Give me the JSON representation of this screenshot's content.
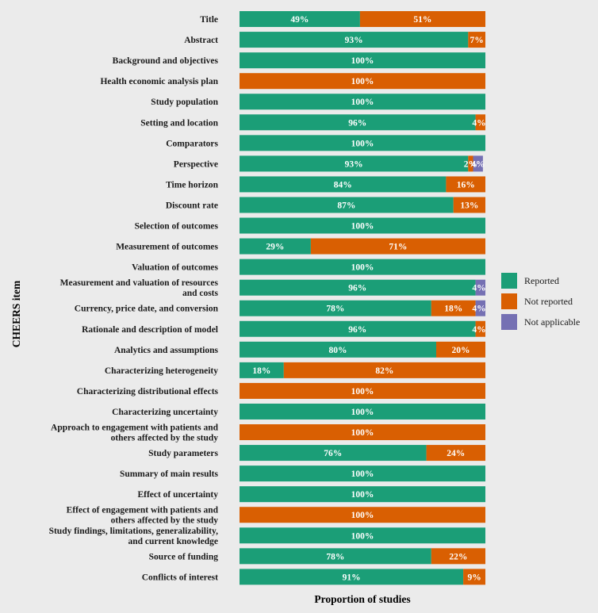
{
  "chart_data": {
    "type": "bar",
    "orientation": "horizontal",
    "stacked": true,
    "xlabel": "Proportion of studies",
    "ylabel": "CHEERS item",
    "xlim": [
      0,
      100
    ],
    "legend_position": "right",
    "categories": [
      [
        "Title"
      ],
      [
        "Abstract"
      ],
      [
        "Background and objectives"
      ],
      [
        "Health economic analysis plan"
      ],
      [
        "Study population"
      ],
      [
        "Setting and location"
      ],
      [
        "Comparators"
      ],
      [
        "Perspective"
      ],
      [
        "Time horizon"
      ],
      [
        "Discount rate"
      ],
      [
        "Selection of outcomes"
      ],
      [
        "Measurement of outcomes"
      ],
      [
        "Valuation of outcomes"
      ],
      [
        "Measurement and valuation of resources",
        "and costs"
      ],
      [
        "Currency, price date, and conversion"
      ],
      [
        "Rationale and description of model"
      ],
      [
        "Analytics and assumptions"
      ],
      [
        "Characterizing heterogeneity"
      ],
      [
        "Characterizing distributional effects"
      ],
      [
        "Characterizing uncertainty"
      ],
      [
        "Approach to engagement with patients and",
        "others affected by the study"
      ],
      [
        "Study parameters"
      ],
      [
        "Summary of main results"
      ],
      [
        "Effect of uncertainty"
      ],
      [
        "Effect of engagement with patients and",
        "others affected by the study"
      ],
      [
        "Study findings, limitations, generalizability,",
        "and current knowledge"
      ],
      [
        "Source of funding"
      ],
      [
        "Conflicts of interest"
      ]
    ],
    "series": [
      {
        "name": "Reported",
        "color": "#1b9e77",
        "values": [
          49,
          93,
          100,
          0,
          100,
          96,
          100,
          93,
          84,
          87,
          100,
          29,
          100,
          96,
          78,
          96,
          80,
          18,
          0,
          100,
          0,
          76,
          100,
          100,
          0,
          100,
          78,
          91
        ]
      },
      {
        "name": "Not reported",
        "color": "#d95f02",
        "values": [
          51,
          7,
          0,
          100,
          0,
          4,
          0,
          2,
          16,
          13,
          0,
          71,
          0,
          0,
          18,
          4,
          20,
          82,
          100,
          0,
          100,
          24,
          0,
          0,
          100,
          0,
          22,
          9
        ]
      },
      {
        "name": "Not applicable",
        "color": "#7570b3",
        "values": [
          0,
          0,
          0,
          0,
          0,
          0,
          0,
          4,
          0,
          0,
          0,
          0,
          0,
          4,
          4,
          0,
          0,
          0,
          0,
          0,
          0,
          0,
          0,
          0,
          0,
          0,
          0,
          0
        ]
      }
    ]
  }
}
